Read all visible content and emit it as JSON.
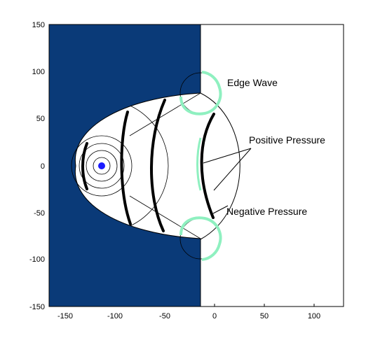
{
  "chart_data": {
    "type": "diagram",
    "title": "",
    "xlim": [
      -165,
      133
    ],
    "ylim": [
      -150,
      150
    ],
    "x_ticks": [
      -150,
      -100,
      -50,
      0,
      50,
      100
    ],
    "y_ticks": [
      150,
      100,
      50,
      0,
      -50,
      -100,
      -150
    ],
    "annotations": {
      "edge_wave": "Edge Wave",
      "positive_pressure": "Positive Pressure",
      "negative_pressure": "Negative Pressure"
    },
    "colors": {
      "wall": "#0a3a78",
      "source": "#1a1aff",
      "edge_wave": "#8ff0c0",
      "wavefront": "#000000"
    }
  }
}
